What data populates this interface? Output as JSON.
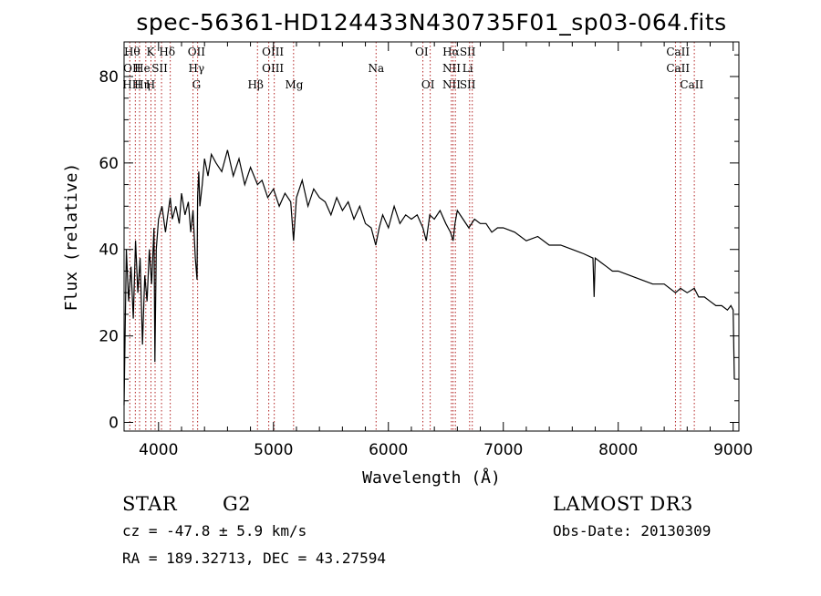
{
  "chart_data": {
    "type": "line",
    "title": "spec-56361-HD124433N430735F01_sp03-064.fits",
    "xlabel": "Wavelength (Å)",
    "ylabel": "Flux (relative)",
    "xlim": [
      3700,
      9050
    ],
    "ylim": [
      -2,
      88
    ],
    "xticks": [
      4000,
      5000,
      6000,
      7000,
      8000,
      9000
    ],
    "yticks": [
      0,
      20,
      40,
      60,
      80
    ],
    "series": [
      {
        "name": "flux",
        "x": [
          3700,
          3720,
          3740,
          3760,
          3780,
          3800,
          3820,
          3840,
          3860,
          3880,
          3900,
          3920,
          3940,
          3960,
          3968,
          3980,
          4000,
          4030,
          4060,
          4080,
          4102,
          4120,
          4150,
          4180,
          4200,
          4230,
          4260,
          4280,
          4300,
          4320,
          4335,
          4340,
          4350,
          4360,
          4380,
          4400,
          4430,
          4460,
          4500,
          4550,
          4600,
          4650,
          4700,
          4750,
          4800,
          4861,
          4900,
          4950,
          5000,
          5050,
          5100,
          5150,
          5175,
          5200,
          5250,
          5300,
          5350,
          5400,
          5450,
          5500,
          5550,
          5600,
          5650,
          5700,
          5750,
          5800,
          5850,
          5890,
          5920,
          5950,
          6000,
          6050,
          6100,
          6150,
          6200,
          6250,
          6300,
          6330,
          6360,
          6400,
          6450,
          6500,
          6540,
          6563,
          6580,
          6600,
          6650,
          6700,
          6750,
          6800,
          6850,
          6900,
          6950,
          7000,
          7100,
          7200,
          7300,
          7400,
          7500,
          7600,
          7700,
          7780,
          7790,
          7800,
          7850,
          7900,
          7950,
          8000,
          8100,
          8200,
          8300,
          8400,
          8498,
          8542,
          8600,
          8662,
          8700,
          8750,
          8800,
          8850,
          8900,
          8950,
          8980,
          9000,
          9010
        ],
        "values": [
          4,
          40,
          28,
          36,
          24,
          42,
          30,
          38,
          18,
          34,
          28,
          40,
          32,
          45,
          14,
          40,
          47,
          50,
          44,
          48,
          52,
          47,
          50,
          46,
          53,
          48,
          51,
          44,
          49,
          38,
          33,
          52,
          58,
          50,
          55,
          61,
          57,
          62,
          60,
          58,
          63,
          57,
          61,
          55,
          59,
          55,
          56,
          52,
          54,
          50,
          53,
          51,
          42,
          52,
          56,
          50,
          54,
          52,
          51,
          48,
          52,
          49,
          51,
          47,
          50,
          46,
          45,
          41,
          45,
          48,
          45,
          50,
          46,
          48,
          47,
          48,
          45,
          42,
          48,
          47,
          49,
          46,
          44,
          42,
          46,
          49,
          47,
          45,
          47,
          46,
          46,
          44,
          45,
          45,
          44,
          42,
          43,
          41,
          41,
          40,
          39,
          38,
          29,
          38,
          37,
          36,
          35,
          35,
          34,
          33,
          32,
          32,
          30,
          31,
          30,
          31,
          29,
          29,
          28,
          27,
          27,
          26,
          27,
          26,
          10
        ]
      }
    ],
    "lines": [
      {
        "w": 3750,
        "labels": [
          "Hθ",
          "OII",
          "HH"
        ],
        "label_wave": 3770
      },
      {
        "w": 3798,
        "labels": [
          "",
          "",
          ""
        ],
        "label_wave": 3798
      },
      {
        "w": 3835,
        "labels": [
          "",
          "He",
          "Hη"
        ],
        "label_wave": 3858
      },
      {
        "w": 3889,
        "labels": [
          "",
          "",
          ""
        ],
        "label_wave": 3889
      },
      {
        "w": 3934,
        "labels": [
          "K",
          "",
          "H"
        ],
        "label_wave": 3930
      },
      {
        "w": 3970,
        "labels": [
          "",
          "",
          ""
        ],
        "label_wave": 3970
      },
      {
        "w": 4026,
        "labels": [
          "",
          "SII",
          ""
        ],
        "label_wave": 4010
      },
      {
        "w": 4102,
        "labels": [
          "Hδ",
          "",
          ""
        ],
        "label_wave": 4075
      },
      {
        "w": 4300,
        "labels": [
          "OII",
          "Hγ",
          "G"
        ],
        "label_wave": 4330
      },
      {
        "w": 4340,
        "labels": [
          "",
          "",
          ""
        ],
        "label_wave": 4340
      },
      {
        "w": 4861,
        "labels": [
          "",
          "",
          "Hβ"
        ],
        "label_wave": 4845
      },
      {
        "w": 4959,
        "labels": [
          "OIII",
          "OIII",
          ""
        ],
        "label_wave": 4995
      },
      {
        "w": 5007,
        "labels": [
          "",
          "",
          ""
        ],
        "label_wave": 5007
      },
      {
        "w": 5175,
        "labels": [
          "",
          "",
          "Mg"
        ],
        "label_wave": 5180
      },
      {
        "w": 5893,
        "labels": [
          "",
          "Na",
          ""
        ],
        "label_wave": 5893
      },
      {
        "w": 6300,
        "labels": [
          "OI",
          "",
          ""
        ],
        "label_wave": 6290
      },
      {
        "w": 6364,
        "labels": [
          "",
          "",
          "OI"
        ],
        "label_wave": 6345
      },
      {
        "w": 6548,
        "labels": [
          "",
          "NII",
          "NII"
        ],
        "label_wave": 6550
      },
      {
        "w": 6563,
        "labels": [
          "Hα",
          "",
          ""
        ],
        "label_wave": 6545
      },
      {
        "w": 6583,
        "labels": [
          "",
          "",
          ""
        ],
        "label_wave": 6583
      },
      {
        "w": 6707,
        "labels": [
          "SII",
          "Li",
          "SII"
        ],
        "label_wave": 6690
      },
      {
        "w": 6730,
        "labels": [
          "",
          "",
          ""
        ],
        "label_wave": 6730
      },
      {
        "w": 8498,
        "labels": [
          "CaII",
          "CaII",
          ""
        ],
        "label_wave": 8520
      },
      {
        "w": 8542,
        "labels": [
          "",
          "",
          ""
        ],
        "label_wave": 8542
      },
      {
        "w": 8662,
        "labels": [
          "",
          "",
          "CaII"
        ],
        "label_wave": 8640
      }
    ]
  },
  "info": {
    "object_class": "STAR",
    "subclass": "G2",
    "survey": "LAMOST DR3",
    "redshift": "cz = -47.8 ± 5.9 km/s",
    "obs_date": "Obs-Date: 20130309",
    "coords": "RA = 189.32713, DEC =  43.27594"
  }
}
